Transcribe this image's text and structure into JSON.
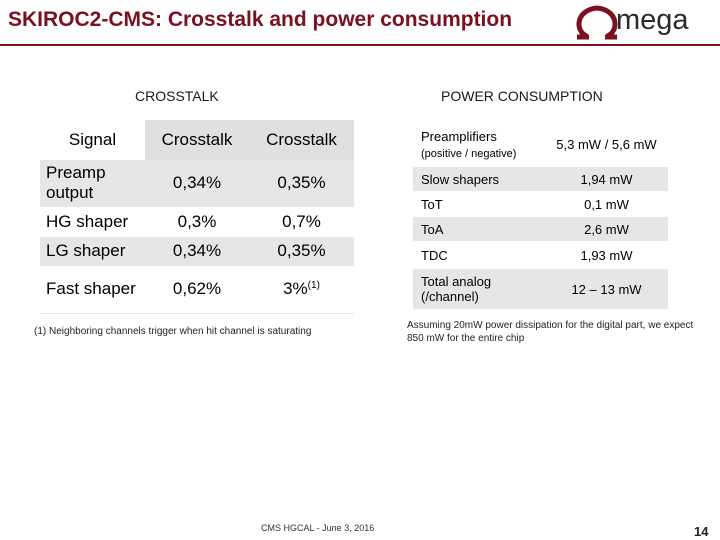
{
  "header": {
    "title": "SKIROC2-CMS: Crosstalk and power consumption",
    "logo_text": "mega",
    "brand_color": "#7a1020"
  },
  "crosstalk": {
    "heading": "CROSSTALK",
    "columns": [
      "Signal",
      "Crosstalk",
      "Crosstalk"
    ],
    "rows": [
      {
        "label": "Preamp output",
        "v1": "0,34%",
        "v2": "0,35%",
        "v2_sup": ""
      },
      {
        "label": "HG shaper",
        "v1": "0,3%",
        "v2": "0,7%",
        "v2_sup": ""
      },
      {
        "label": "LG shaper",
        "v1": "0,34%",
        "v2": "0,35%",
        "v2_sup": ""
      },
      {
        "label": "Fast shaper",
        "v1": "0,62%",
        "v2": "3%",
        "v2_sup": "(1)"
      }
    ],
    "footnote": "(1) Neighboring channels trigger when hit channel is saturating"
  },
  "power": {
    "heading": "POWER CONSUMPTION",
    "rows": [
      {
        "label": "Preamplifiers",
        "sub": "(positive / negative)",
        "value": "5,3 mW / 5,6 mW"
      },
      {
        "label": "Slow shapers",
        "sub": "",
        "value": "1,94 mW"
      },
      {
        "label": "ToT",
        "sub": "",
        "value": "0,1 mW"
      },
      {
        "label": "ToA",
        "sub": "",
        "value": "2,6 mW"
      },
      {
        "label": "TDC",
        "sub": "",
        "value": "1,93 mW"
      },
      {
        "label": "Total analog (/channel)",
        "sub": "",
        "value": "12 – 13 mW"
      }
    ],
    "footnote": "Assuming 20mW power dissipation for the digital part, we expect 850 mW for the entire chip"
  },
  "footer": {
    "date": "CMS HGCAL - June 3, 2016",
    "page": "14"
  }
}
